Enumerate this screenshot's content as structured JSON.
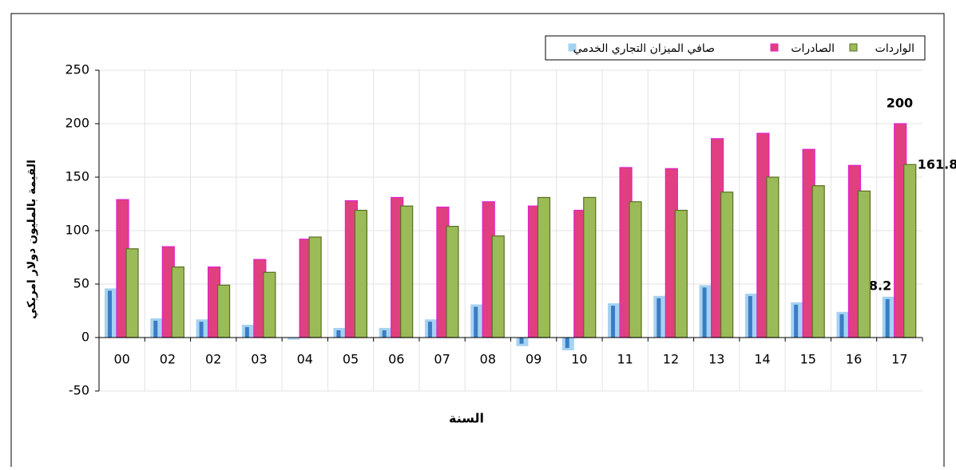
{
  "chart_data": {
    "type": "bar",
    "xlabel": "السنة",
    "ylabel": "القيمة بالمليون دولار امريكي",
    "categories": [
      "00",
      "02",
      "02",
      "03",
      "04",
      "05",
      "06",
      "07",
      "08",
      "09",
      "10",
      "11",
      "12",
      "13",
      "14",
      "15",
      "16",
      "17"
    ],
    "series": [
      {
        "name": "صافي الميزان التجاري الخدمي",
        "color": "#a6d2f2",
        "values": [
          46,
          18,
          17,
          12,
          -2,
          9,
          9,
          17,
          31,
          -8,
          -12,
          32,
          39,
          49,
          41,
          33,
          24,
          38.2
        ]
      },
      {
        "name": "الصادرات",
        "color": "#e0407f",
        "values": [
          129,
          85,
          66,
          73,
          92,
          128,
          131,
          122,
          127,
          123,
          119,
          159,
          158,
          186,
          191,
          176,
          161,
          200
        ]
      },
      {
        "name": "الواردات",
        "color": "#9bbb59",
        "values": [
          83,
          66,
          49,
          61,
          94,
          119,
          123,
          104,
          95,
          131,
          131,
          127,
          119,
          136,
          150,
          142,
          137,
          161.8
        ]
      }
    ],
    "data_labels": "last",
    "ylim": [
      -50,
      250
    ],
    "yticks": [
      -50,
      0,
      50,
      100,
      150,
      200,
      250
    ],
    "grid": true
  }
}
